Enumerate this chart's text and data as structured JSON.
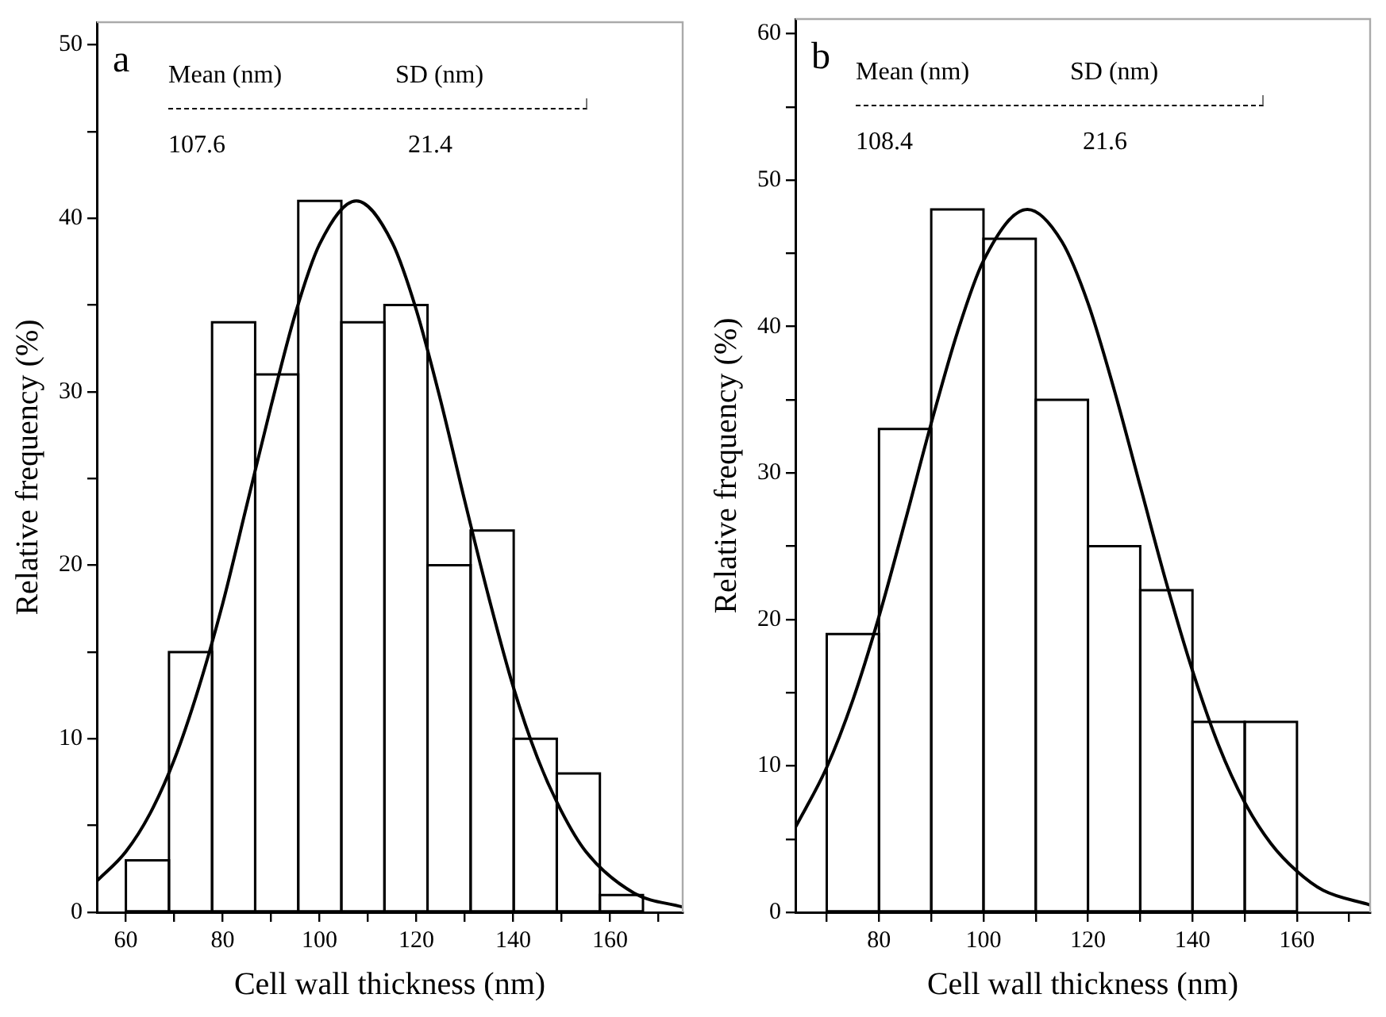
{
  "chart_data": [
    {
      "type": "histogram",
      "xlabel": "Cell wall thickness (nm)",
      "ylabel": "Relative frequency (%)",
      "color": "#000000",
      "bins": [
        60,
        68.9,
        77.8,
        86.7,
        95.6,
        104.5,
        113.4,
        122.3,
        131.2,
        140.1,
        149,
        157.9,
        166.8
      ],
      "values": [
        3,
        15,
        34,
        31,
        41,
        34,
        35,
        20,
        22,
        10,
        8,
        1
      ],
      "series": [
        {
          "type": "line",
          "color": "#000000",
          "x": [
            54,
            60,
            65,
            70,
            75,
            80,
            85,
            90,
            95,
            100,
            107.6,
            115,
            120,
            125,
            130,
            135,
            140,
            145,
            150,
            155,
            165,
            175
          ],
          "values": [
            1.8,
            3.5,
            5.7,
            8.8,
            12.9,
            17.8,
            23.5,
            29.2,
            34.5,
            38.5,
            41,
            38.6,
            34.7,
            29.5,
            23.7,
            18.1,
            13,
            8.9,
            5.8,
            3.5,
            1.1,
            0.3
          ]
        }
      ],
      "xlim": [
        54,
        175
      ],
      "ylim": [
        0,
        51.3
      ],
      "xticks": [
        60,
        {
          "value": 70,
          "label": null
        },
        80,
        {
          "value": 90,
          "label": null
        },
        100,
        {
          "value": 110,
          "label": null
        },
        120,
        {
          "value": 130,
          "label": null
        },
        140,
        {
          "value": 150,
          "label": null
        },
        160,
        {
          "value": 170,
          "label": null
        }
      ],
      "yticks": [
        0,
        {
          "value": 5,
          "label": null
        },
        10,
        {
          "value": 15,
          "label": null
        },
        20,
        {
          "value": 25,
          "label": null
        },
        30,
        {
          "value": 35,
          "label": null
        },
        40,
        {
          "value": 45,
          "label": null
        },
        50
      ],
      "annotations": [
        "a",
        "Mean (nm)",
        "SD (nm)",
        "107.6",
        "21.4"
      ]
    },
    {
      "type": "histogram",
      "xlabel": "Cell wall thickness (nm)",
      "ylabel": "Relative frequency (%)",
      "color": "#000000",
      "bins": [
        70,
        80,
        90,
        100,
        110,
        120,
        130,
        140,
        150,
        160
      ],
      "values": [
        19,
        33,
        48,
        46,
        35,
        25,
        22,
        13,
        13
      ],
      "series": [
        {
          "type": "line",
          "color": "#000000",
          "x": [
            64,
            70,
            75,
            80,
            85,
            90,
            95,
            100,
            108.4,
            115,
            120,
            125,
            130,
            135,
            140,
            145,
            150,
            155,
            160,
            165,
            174
          ],
          "values": [
            5.8,
            9.9,
            14.5,
            20.2,
            26.7,
            33.4,
            39.6,
            44.5,
            48,
            45.8,
            41.6,
            35.7,
            29.1,
            22.5,
            16.5,
            11.4,
            7.5,
            4.7,
            2.8,
            1.5,
            0.5
          ]
        }
      ],
      "xlim": [
        64,
        174
      ],
      "ylim": [
        0,
        61
      ],
      "xticks": [
        {
          "value": 70,
          "label": null
        },
        80,
        {
          "value": 90,
          "label": null
        },
        100,
        {
          "value": 110,
          "label": null
        },
        120,
        {
          "value": 130,
          "label": null
        },
        140,
        {
          "value": 150,
          "label": null
        },
        160,
        {
          "value": 170,
          "label": null
        }
      ],
      "yticks": [
        0,
        {
          "value": 5,
          "label": null
        },
        10,
        {
          "value": 15,
          "label": null
        },
        20,
        {
          "value": 25,
          "label": null
        },
        30,
        {
          "value": 35,
          "label": null
        },
        40,
        {
          "value": 45,
          "label": null
        },
        50,
        {
          "value": 55,
          "label": null
        },
        60
      ],
      "annotations": [
        "b",
        "Mean (nm)",
        "SD (nm)",
        "108.4",
        "21.6"
      ]
    }
  ]
}
